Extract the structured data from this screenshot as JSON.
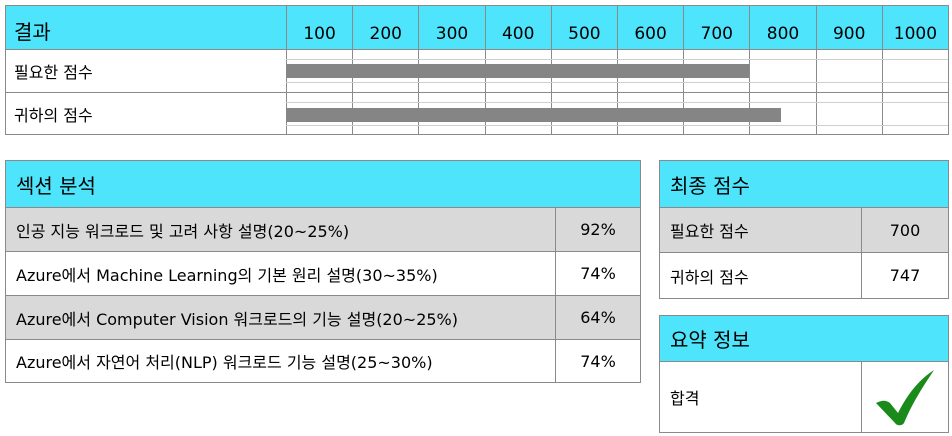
{
  "score_table": {
    "title": "결과",
    "scale": [
      "100",
      "200",
      "300",
      "400",
      "500",
      "600",
      "700",
      "800",
      "900",
      "1000"
    ],
    "rows": [
      {
        "label": "필요한 점수",
        "score": 700
      },
      {
        "label": "귀하의 점수",
        "score": 747
      }
    ],
    "bar_color": "#858585"
  },
  "section_analysis": {
    "title": "섹션 분석",
    "rows": [
      {
        "name": "인공 지능 워크로드 및 고려 사항 설명(20~25%)",
        "percent": "92%"
      },
      {
        "name": "Azure에서 Machine Learning의 기본 원리 설명(30~35%)",
        "percent": "74%"
      },
      {
        "name": "Azure에서 Computer Vision 워크로드의 기능 설명(20~25%)",
        "percent": "64%"
      },
      {
        "name": "Azure에서 자연어 처리(NLP) 워크로드 기능 설명(25~30%)",
        "percent": "74%"
      }
    ]
  },
  "final_score": {
    "title": "최종 점수",
    "rows": [
      {
        "label": "필요한 점수",
        "value": "700"
      },
      {
        "label": "귀하의 점수",
        "value": "747"
      }
    ]
  },
  "summary": {
    "title": "요약 정보",
    "result": "합격",
    "icon": "checkmark-icon"
  },
  "colors": {
    "accent": "#4ee4fb",
    "shaded_row": "#d9d9d9",
    "check": "#1a8a1a"
  }
}
